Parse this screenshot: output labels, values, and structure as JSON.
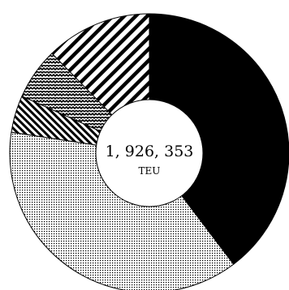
{
  "chart_data": {
    "type": "pie",
    "style": "donut",
    "center_total": "1, 926, 353",
    "center_unit": "TEU",
    "legend": "none",
    "slices": [
      {
        "pattern": "solid-black",
        "fraction": 0.397
      },
      {
        "pattern": "dotted",
        "fraction": 0.377
      },
      {
        "pattern": "dense-diagonal-stripes",
        "fraction": 0.043
      },
      {
        "pattern": "zigzag-stripes",
        "fraction": 0.06
      },
      {
        "pattern": "coarse-diagonal-stripes",
        "fraction": 0.123
      }
    ]
  }
}
